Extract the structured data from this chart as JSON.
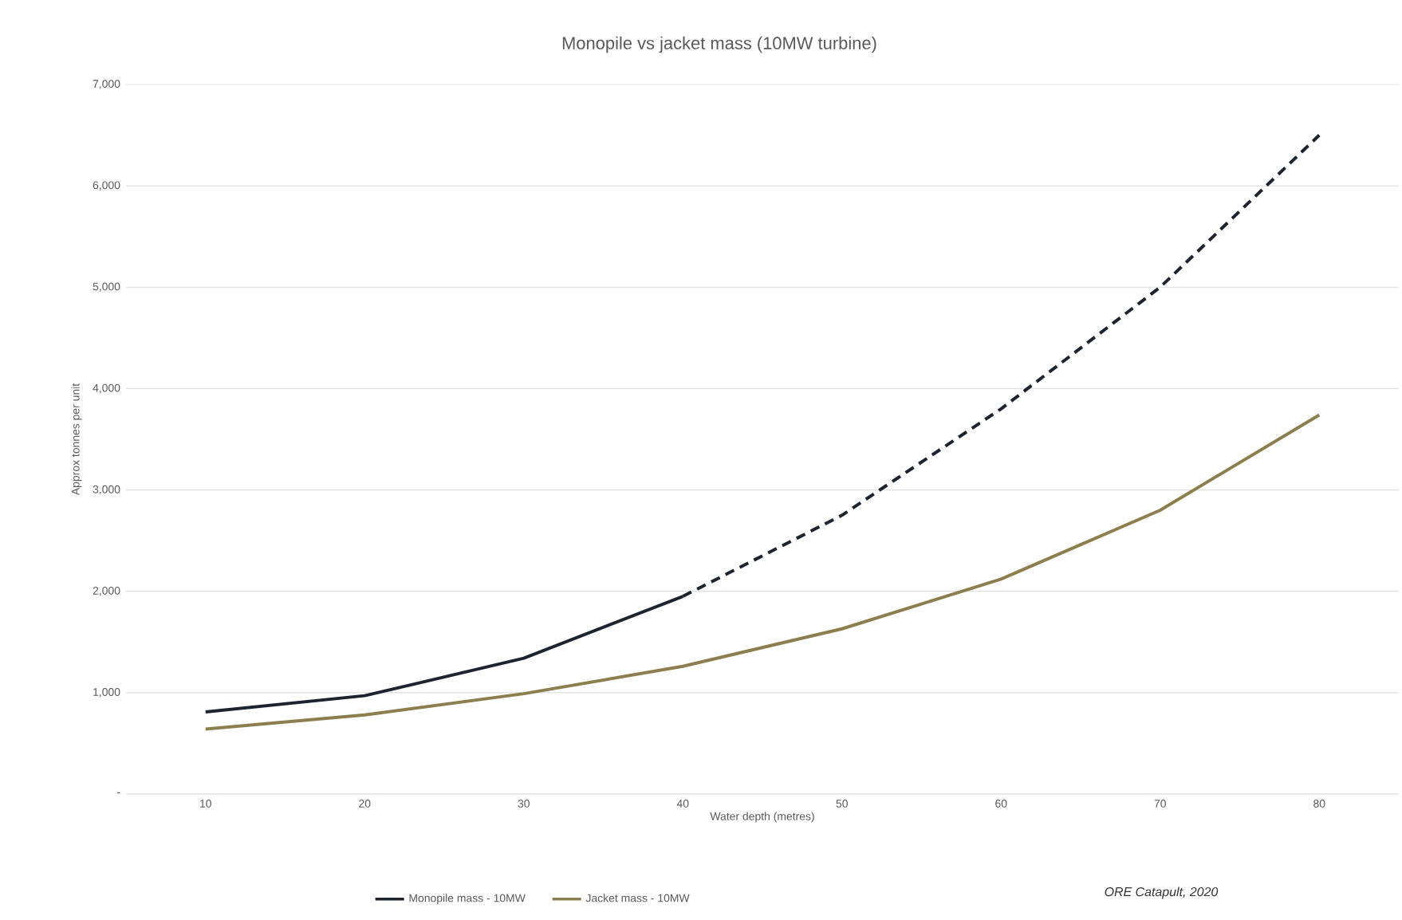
{
  "chart_data": {
    "type": "line",
    "title": "Monopile vs jacket mass (10MW turbine)",
    "xlabel": "Water depth (metres)",
    "ylabel": "Approx tonnes per unit",
    "categories": [
      "10",
      "20",
      "30",
      "40",
      "50",
      "60",
      "70",
      "80"
    ],
    "series": [
      {
        "name": "Monopile mass - 10MW",
        "color": "#1c2430",
        "line_style": "solid",
        "values": [
          810,
          970,
          1340,
          1950,
          null,
          null,
          null,
          null
        ]
      },
      {
        "color": "#1c2430",
        "line_style": "dashed",
        "values": [
          null,
          null,
          null,
          1950,
          2750,
          3800,
          5000,
          6500
        ]
      },
      {
        "name": "Jacket mass - 10MW",
        "color": "#8c7e4e",
        "line_style": "solid",
        "values": [
          640,
          780,
          990,
          1260,
          1630,
          2120,
          2800,
          3740
        ]
      }
    ],
    "ylim": [
      0,
      7000
    ],
    "yticks": [
      {
        "value": 0,
        "label": "-"
      },
      {
        "value": 1000,
        "label": "1,000"
      },
      {
        "value": 2000,
        "label": "2,000"
      },
      {
        "value": 3000,
        "label": "3,000"
      },
      {
        "value": 4000,
        "label": "4,000"
      },
      {
        "value": 5000,
        "label": "5,000"
      },
      {
        "value": 6000,
        "label": "6,000"
      },
      {
        "value": 7000,
        "label": "7,000"
      }
    ],
    "grid": "y",
    "legend": "bottom",
    "marker": "none",
    "annotations": [
      "ORE Catapult, 2020"
    ]
  }
}
